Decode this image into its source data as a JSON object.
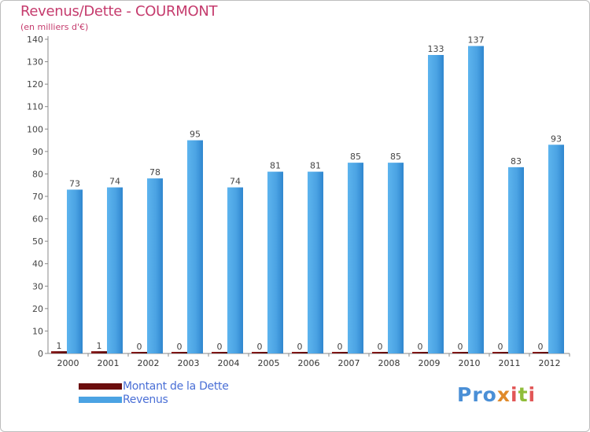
{
  "title": "Revenus/Dette - COURMONT",
  "subtitle": "(en milliers d'€)",
  "logo_text": "Proxiti",
  "colors": {
    "title": "#c53b6d",
    "dette": "#6b0d0d",
    "revenus": "#4ba3e3",
    "legend_text": "#4a6fd6"
  },
  "chart_data": {
    "type": "bar",
    "title": "Revenus/Dette - COURMONT",
    "subtitle": "(en milliers d'€)",
    "categories": [
      "2000",
      "2001",
      "2002",
      "2003",
      "2004",
      "2005",
      "2006",
      "2007",
      "2008",
      "2009",
      "2010",
      "2011",
      "2012"
    ],
    "series": [
      {
        "name": "Montant de la Dette",
        "values": [
          1,
          1,
          0,
          0,
          0,
          0,
          0,
          0,
          0,
          0,
          0,
          0,
          0
        ]
      },
      {
        "name": "Revenus",
        "values": [
          73,
          74,
          78,
          95,
          74,
          81,
          81,
          85,
          85,
          133,
          137,
          83,
          93
        ]
      }
    ],
    "ylim": [
      0,
      140
    ],
    "yticks": [
      0,
      10,
      20,
      30,
      40,
      50,
      60,
      70,
      80,
      90,
      100,
      110,
      120,
      130,
      140
    ],
    "grid": false,
    "legend": "bottom-left"
  }
}
